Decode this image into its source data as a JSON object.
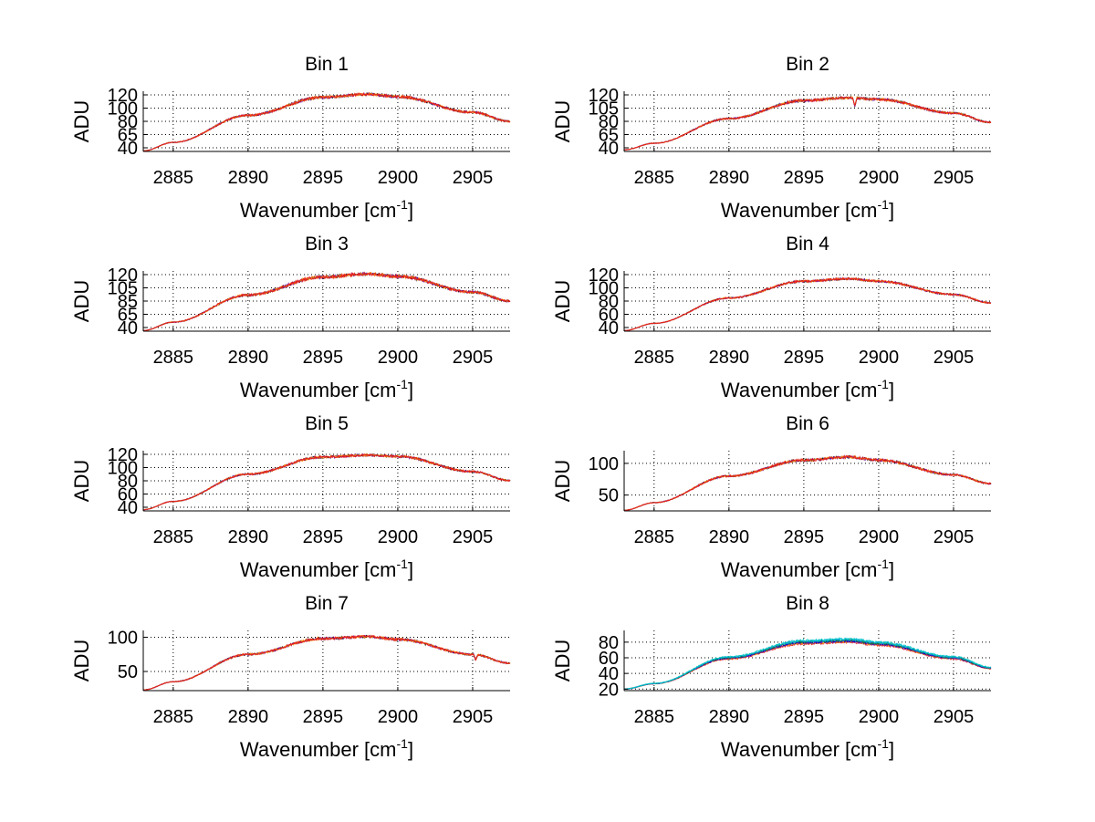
{
  "figure": {
    "background": "#ffffff",
    "axis_color": "#000000",
    "grid_color": "#000000"
  },
  "chart_data": [
    {
      "type": "line",
      "title": "Bin 1",
      "xlabel": "Wavenumber [cm",
      "xlabel_sup": "-1",
      "xlabel_close": "]",
      "ylabel": "ADU",
      "xlim": [
        2883,
        2907.5
      ],
      "ylim": [
        35,
        135
      ],
      "xticks": [
        2885,
        2890,
        2895,
        2900,
        2905
      ],
      "ytick_labels": [
        "40",
        "65",
        "80",
        "100",
        "120"
      ],
      "curve": {
        "x": [
          2883,
          2885,
          2890,
          2895,
          2898,
          2900,
          2905,
          2907.5
        ],
        "y": [
          36,
          50,
          95,
          125,
          130,
          126,
          100,
          85
        ]
      },
      "noise": 2.2,
      "dip": null,
      "spread": 0
    },
    {
      "type": "line",
      "title": "Bin 2",
      "xlabel": "Wavenumber [cm",
      "xlabel_sup": "-1",
      "xlabel_close": "]",
      "ylabel": "ADU",
      "xlim": [
        2883,
        2907.5
      ],
      "ylim": [
        35,
        145
      ],
      "xticks": [
        2885,
        2890,
        2895,
        2900,
        2905
      ],
      "ytick_labels": [
        "40",
        "65",
        "80",
        "105",
        "120"
      ],
      "curve": {
        "x": [
          2883,
          2885,
          2890,
          2895,
          2898,
          2900,
          2905,
          2907.5
        ],
        "y": [
          38,
          50,
          95,
          128,
          133,
          130,
          105,
          88
        ]
      },
      "noise": 2.2,
      "dip": {
        "x": 2898.4,
        "depth": 15
      },
      "spread": 0
    },
    {
      "type": "line",
      "title": "Bin 3",
      "xlabel": "Wavenumber [cm",
      "xlabel_sup": "-1",
      "xlabel_close": "]",
      "ylabel": "ADU",
      "xlim": [
        2883,
        2907.5
      ],
      "ylim": [
        35,
        135
      ],
      "xticks": [
        2885,
        2890,
        2895,
        2900,
        2905
      ],
      "ytick_labels": [
        "40",
        "65",
        "85",
        "105",
        "120"
      ],
      "curve": {
        "x": [
          2883,
          2885,
          2890,
          2895,
          2898,
          2900,
          2905,
          2907.5
        ],
        "y": [
          36,
          50,
          95,
          125,
          130,
          126,
          100,
          85
        ]
      },
      "noise": 2.4,
      "dip": null,
      "spread": 0
    },
    {
      "type": "line",
      "title": "Bin 4",
      "xlabel": "Wavenumber [cm",
      "xlabel_sup": "-1",
      "xlabel_close": "]",
      "ylabel": "ADU",
      "xlim": [
        2883,
        2907.5
      ],
      "ylim": [
        35,
        135
      ],
      "xticks": [
        2885,
        2890,
        2895,
        2900,
        2905
      ],
      "ytick_labels": [
        "40",
        "60",
        "80",
        "100",
        "120"
      ],
      "curve": {
        "x": [
          2883,
          2885,
          2890,
          2895,
          2898,
          2900,
          2905,
          2907.5
        ],
        "y": [
          36,
          48,
          90,
          118,
          122,
          118,
          96,
          82
        ]
      },
      "noise": 1.8,
      "dip": null,
      "spread": 0
    },
    {
      "type": "line",
      "title": "Bin 5",
      "xlabel": "Wavenumber [cm",
      "xlabel_sup": "-1",
      "xlabel_close": "]",
      "ylabel": "ADU",
      "xlim": [
        2883,
        2907.5
      ],
      "ylim": [
        30,
        125
      ],
      "xticks": [
        2885,
        2890,
        2895,
        2900,
        2905
      ],
      "ytick_labels": [
        "40",
        "60",
        "80",
        "100",
        "120"
      ],
      "curve": {
        "x": [
          2883,
          2885,
          2890,
          2895,
          2898,
          2900,
          2905,
          2907.5
        ],
        "y": [
          32,
          45,
          88,
          115,
          118,
          116,
          92,
          78
        ]
      },
      "noise": 1.8,
      "dip": null,
      "spread": 0
    },
    {
      "type": "line",
      "title": "Bin 6",
      "xlabel": "Wavenumber [cm",
      "xlabel_sup": "-1",
      "xlabel_close": "]",
      "ylabel": "ADU",
      "xlim": [
        2883,
        2907.5
      ],
      "ylim": [
        25,
        120
      ],
      "xticks": [
        2885,
        2890,
        2895,
        2900,
        2905
      ],
      "ytick_labels": [
        "50",
        "100"
      ],
      "ytick_values": [
        50,
        100
      ],
      "curve": {
        "x": [
          2883,
          2885,
          2890,
          2895,
          2898,
          2900,
          2905,
          2907.5
        ],
        "y": [
          26,
          38,
          80,
          105,
          110,
          105,
          82,
          68
        ]
      },
      "noise": 2.0,
      "dip": null,
      "spread": 0
    },
    {
      "type": "line",
      "title": "Bin 7",
      "xlabel": "Wavenumber [cm",
      "xlabel_sup": "-1",
      "xlabel_close": "]",
      "ylabel": "ADU",
      "xlim": [
        2883,
        2907.5
      ],
      "ylim": [
        22,
        110
      ],
      "xticks": [
        2885,
        2890,
        2895,
        2900,
        2905
      ],
      "ytick_labels": [
        "50",
        "100"
      ],
      "ytick_values": [
        50,
        100
      ],
      "curve": {
        "x": [
          2883,
          2885,
          2890,
          2895,
          2898,
          2900,
          2905,
          2907.5
        ],
        "y": [
          23,
          35,
          75,
          98,
          101,
          97,
          75,
          62
        ]
      },
      "noise": 1.8,
      "dip": {
        "x": 2905.2,
        "depth": 8
      },
      "spread": 0
    },
    {
      "type": "line",
      "title": "Bin 8",
      "xlabel": "Wavenumber [cm",
      "xlabel_sup": "-1",
      "xlabel_close": "]",
      "ylabel": "ADU",
      "xlim": [
        2883,
        2907.5
      ],
      "ylim": [
        18,
        95
      ],
      "xticks": [
        2885,
        2890,
        2895,
        2900,
        2905
      ],
      "ytick_labels": [
        "20",
        "40",
        "60",
        "80"
      ],
      "ytick_values": [
        20,
        40,
        60,
        80
      ],
      "curve": {
        "x": [
          2883,
          2885,
          2890,
          2895,
          2898,
          2900,
          2905,
          2907.5
        ],
        "y": [
          20,
          27,
          60,
          80,
          82,
          78,
          60,
          47
        ]
      },
      "noise": 1.5,
      "dip": null,
      "spread": 6
    }
  ],
  "series_colors": [
    "#e6161d",
    "#ff8c00",
    "#6a0dad",
    "#0000c8",
    "#1b8a1b",
    "#00a0e0",
    "#00c8c8",
    "#000000"
  ]
}
